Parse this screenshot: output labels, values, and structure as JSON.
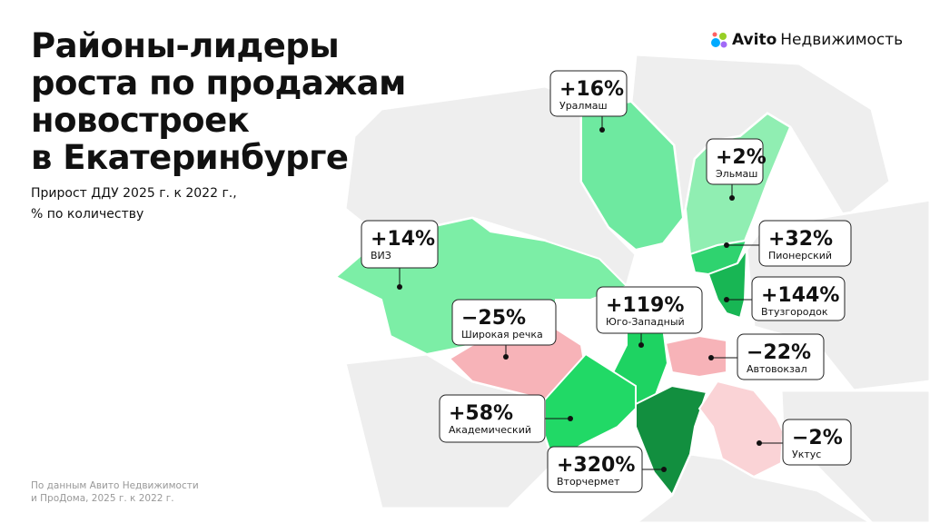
{
  "title": [
    "Районы-лидеры",
    "роста по продажам",
    "новостроек",
    "в Екатеринбурге"
  ],
  "subtitle": [
    "Прирост ДДУ 2025 г. к 2022 г.,",
    "% по количеству"
  ],
  "source": [
    "По данным Авито Недвижимости",
    "и ПроДома, 2025 г. к 2022 г."
  ],
  "logo": {
    "brand": "Avito",
    "product": "Недвижимость"
  },
  "districts": [
    {
      "value": "+16%",
      "name": "Уралмаш"
    },
    {
      "value": "+2%",
      "name": "Эльмаш"
    },
    {
      "value": "+32%",
      "name": "Пионерский"
    },
    {
      "value": "+144%",
      "name": "Втузгородок"
    },
    {
      "value": "+14%",
      "name": "ВИЗ"
    },
    {
      "value": "−25%",
      "name": "Широкая речка"
    },
    {
      "value": "+119%",
      "name": "Юго-Западный"
    },
    {
      "value": "−22%",
      "name": "Автовокзал"
    },
    {
      "value": "+58%",
      "name": "Академический"
    },
    {
      "value": "+320%",
      "name": "Вторчермет"
    },
    {
      "value": "−2%",
      "name": "Уктус"
    }
  ]
}
